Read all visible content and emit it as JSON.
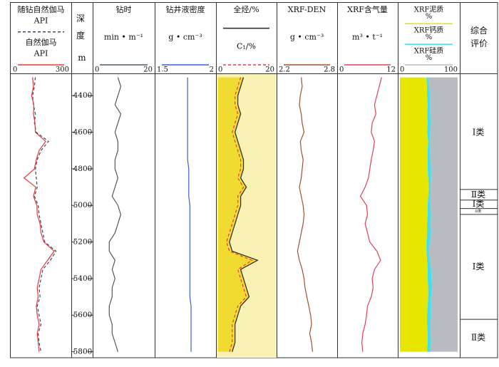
{
  "chart_data": {
    "type": "well-log",
    "depth_label": "深度",
    "depth_unit": "m",
    "ylim": [
      4290,
      5825
    ],
    "yticks": [
      4400,
      4600,
      4800,
      5000,
      5200,
      5400,
      5600,
      5800
    ],
    "depth": [
      4300,
      4350,
      4400,
      4450,
      4500,
      4550,
      4600,
      4650,
      4700,
      4750,
      4800,
      4850,
      4900,
      4950,
      5000,
      5050,
      5100,
      5150,
      5200,
      5250,
      5300,
      5350,
      5400,
      5450,
      5500,
      5550,
      5600,
      5650,
      5700,
      5750,
      5800
    ],
    "tracks": [
      {
        "xlim": [
          0,
          300
        ],
        "series": [
          {
            "name": "随钻自然伽马",
            "unit": "API",
            "color": "#3a4a5a",
            "dash": true,
            "values": [
              120,
              115,
              105,
              110,
              120,
              115,
              125,
              190,
              150,
              130,
              120,
              125,
              130,
              115,
              135,
              140,
              150,
              160,
              170,
              230,
              200,
              160,
              150,
              140,
              145,
              130,
              140,
              150,
              135,
              140,
              150
            ]
          },
          {
            "name": "自然伽马",
            "unit": "API",
            "color": "#e8383d",
            "values": [
              105,
              110,
              100,
              112,
              110,
              118,
              120,
              175,
              140,
              125,
              115,
              60,
              122,
              110,
              128,
              130,
              145,
              150,
              165,
              220,
              185,
              150,
              140,
              130,
              135,
              125,
              130,
              140,
              130,
              135,
              140
            ]
          }
        ]
      },
      {
        "title": "钻时",
        "unit": "min • m⁻¹",
        "xlim": [
          0,
          20
        ],
        "series": [
          {
            "color": "#4a5a66",
            "values": [
              8,
              9,
              8,
              7,
              9,
              8,
              7,
              8,
              8,
              7,
              7,
              8,
              7,
              6,
              8,
              9,
              8,
              7,
              5,
              5,
              7,
              6,
              7,
              6,
              6,
              5,
              5,
              6,
              6,
              7,
              8
            ]
          }
        ]
      },
      {
        "title": "钻井液密度",
        "unit": "g • cm⁻³",
        "xlim": [
          1.5,
          2
        ],
        "series": [
          {
            "color": "#3a5fd9",
            "values": [
              1.77,
              1.77,
              1.77,
              1.77,
              1.77,
              1.77,
              1.77,
              1.77,
              1.77,
              1.77,
              1.78,
              1.78,
              1.78,
              1.78,
              1.79,
              1.79,
              1.79,
              1.79,
              1.79,
              1.79,
              1.79,
              1.79,
              1.79,
              1.79,
              1.79,
              1.8,
              1.8,
              1.8,
              1.8,
              1.8,
              1.8
            ]
          }
        ]
      },
      {
        "title": "全烃/%",
        "xlim": [
          0,
          20
        ],
        "background": "#f8f3b4",
        "series": [
          {
            "color": "#222222",
            "fill": "#f0dc30",
            "values": [
              9,
              8,
              7,
              7,
              8,
              7,
              6,
              7,
              8,
              9,
              9,
              8,
              10,
              8,
              8,
              7,
              6,
              5,
              4,
              5,
              14,
              8,
              9,
              10,
              11,
              8,
              7,
              6,
              6,
              6,
              5
            ]
          },
          {
            "name": "C₁/%",
            "color": "#e8383d",
            "dash": true,
            "values": [
              8,
              7,
              6,
              6,
              7,
              6,
              5,
              6,
              7,
              8,
              8,
              7,
              9,
              7,
              7,
              6,
              5,
              4,
              3,
              4,
              12,
              7,
              8,
              9,
              10,
              7,
              6,
              5,
              5,
              5,
              4
            ]
          }
        ]
      },
      {
        "title": "XRF-DEN",
        "unit": "g • cm⁻³",
        "xlim": [
          2.2,
          2.8
        ],
        "series": [
          {
            "color": "#a0522d",
            "values": [
              2.44,
              2.45,
              2.43,
              2.42,
              2.44,
              2.45,
              2.47,
              2.43,
              2.44,
              2.46,
              2.45,
              2.44,
              2.42,
              2.44,
              2.46,
              2.47,
              2.46,
              2.44,
              2.42,
              2.4,
              2.42,
              2.45,
              2.47,
              2.48,
              2.5,
              2.52,
              2.54,
              2.55,
              2.53,
              2.55,
              2.56
            ]
          }
        ]
      },
      {
        "title": "XRF含气量",
        "unit": "m³ • t⁻¹",
        "xlim": [
          0,
          12
        ],
        "series": [
          {
            "color": "#e0405a",
            "values": [
              9,
              8.5,
              8,
              7.5,
              7.8,
              7,
              6.8,
              7.5,
              7.2,
              6.8,
              6.5,
              6.2,
              5.5,
              4.5,
              5.8,
              6,
              5.5,
              6,
              6.5,
              8,
              8.8,
              7.5,
              7,
              7.2,
              6.8,
              6,
              5.8,
              5.5,
              5,
              4.8,
              5
            ]
          }
        ]
      },
      {
        "xlim": [
          0,
          100
        ],
        "stacked": true,
        "series": [
          {
            "name": "XRF泥质",
            "unit": "%",
            "color": "#e6e600",
            "values": [
              46,
              47,
              47,
              48,
              47,
              48,
              47,
              49,
              48,
              48,
              48,
              49,
              50,
              49,
              48,
              48,
              47,
              47,
              46,
              46,
              47,
              48,
              48,
              49,
              49,
              48,
              47,
              47,
              48,
              48,
              47
            ]
          },
          {
            "name": "XRF钙质",
            "unit": "%",
            "color": "#40e0f0",
            "values": [
              3,
              4,
              5,
              4,
              5,
              6,
              5,
              3,
              4,
              5,
              6,
              5,
              3,
              4,
              5,
              6,
              6,
              7,
              6,
              4,
              5,
              6,
              7,
              6,
              5,
              6,
              7,
              6,
              5,
              6,
              5
            ]
          },
          {
            "name": "XRF硅质",
            "unit": "%",
            "color": "#b8bcc0",
            "values": [
              51,
              49,
              48,
              48,
              48,
              46,
              48,
              48,
              48,
              47,
              46,
              46,
              47,
              47,
              47,
              46,
              47,
              46,
              48,
              50,
              48,
              46,
              45,
              45,
              46,
              46,
              46,
              47,
              47,
              46,
              48
            ]
          }
        ]
      }
    ],
    "eval_title": "综合评价",
    "eval_boundaries": [
      4913,
      4971,
      5017,
      5049,
      5623
    ],
    "eval_labels": [
      "Ⅰ类",
      "Ⅱ类",
      "Ⅰ类",
      "Ⅱ类",
      "Ⅰ类",
      "Ⅱ类"
    ]
  }
}
